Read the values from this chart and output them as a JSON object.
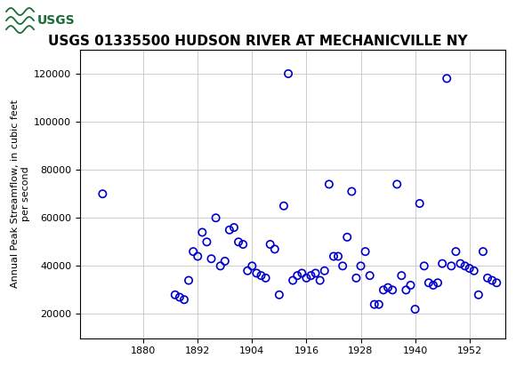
{
  "title": "USGS 01335500 HUDSON RIVER AT MECHANICVILLE NY",
  "ylabel": "Annual Peak Streamflow, in cubic feet\nper second",
  "xlabel": "",
  "years": [
    1871,
    1887,
    1888,
    1889,
    1890,
    1891,
    1892,
    1893,
    1894,
    1895,
    1896,
    1897,
    1898,
    1899,
    1900,
    1901,
    1902,
    1903,
    1904,
    1905,
    1906,
    1907,
    1908,
    1909,
    1910,
    1911,
    1912,
    1913,
    1914,
    1915,
    1916,
    1917,
    1918,
    1919,
    1920,
    1921,
    1922,
    1923,
    1924,
    1925,
    1926,
    1927,
    1928,
    1929,
    1930,
    1931,
    1932,
    1933,
    1934,
    1935,
    1936,
    1937,
    1938,
    1939,
    1940,
    1941,
    1942,
    1943,
    1944,
    1945,
    1946,
    1947,
    1948,
    1949,
    1950,
    1951,
    1952,
    1953,
    1954,
    1955,
    1956,
    1957,
    1958
  ],
  "flows": [
    70000,
    28000,
    27000,
    26000,
    34000,
    46000,
    44000,
    54000,
    50000,
    43000,
    60000,
    40000,
    42000,
    55000,
    56000,
    50000,
    49000,
    38000,
    40000,
    37000,
    36000,
    35000,
    49000,
    47000,
    28000,
    65000,
    120000,
    34000,
    36000,
    37000,
    35000,
    36000,
    37000,
    34000,
    38000,
    74000,
    44000,
    44000,
    40000,
    52000,
    71000,
    35000,
    40000,
    46000,
    36000,
    24000,
    24000,
    30000,
    31000,
    30000,
    74000,
    36000,
    30000,
    32000,
    22000,
    66000,
    40000,
    33000,
    32000,
    33000,
    41000,
    118000,
    40000,
    46000,
    41000,
    40000,
    39000,
    38000,
    28000,
    46000,
    35000,
    34000,
    33000
  ],
  "marker_color": "#0000CC",
  "marker_size": 6,
  "marker": "o",
  "marker_facecolor": "none",
  "ylim": [
    10000,
    130000
  ],
  "xlim": [
    1866,
    1960
  ],
  "yticks": [
    20000,
    40000,
    60000,
    80000,
    100000,
    120000
  ],
  "xticks": [
    1880,
    1892,
    1904,
    1916,
    1928,
    1940,
    1952
  ],
  "grid_color": "#cccccc",
  "bg_color": "#ffffff",
  "header_color": "#1a6e35",
  "title_fontsize": 11,
  "ylabel_fontsize": 8,
  "tick_fontsize": 8
}
